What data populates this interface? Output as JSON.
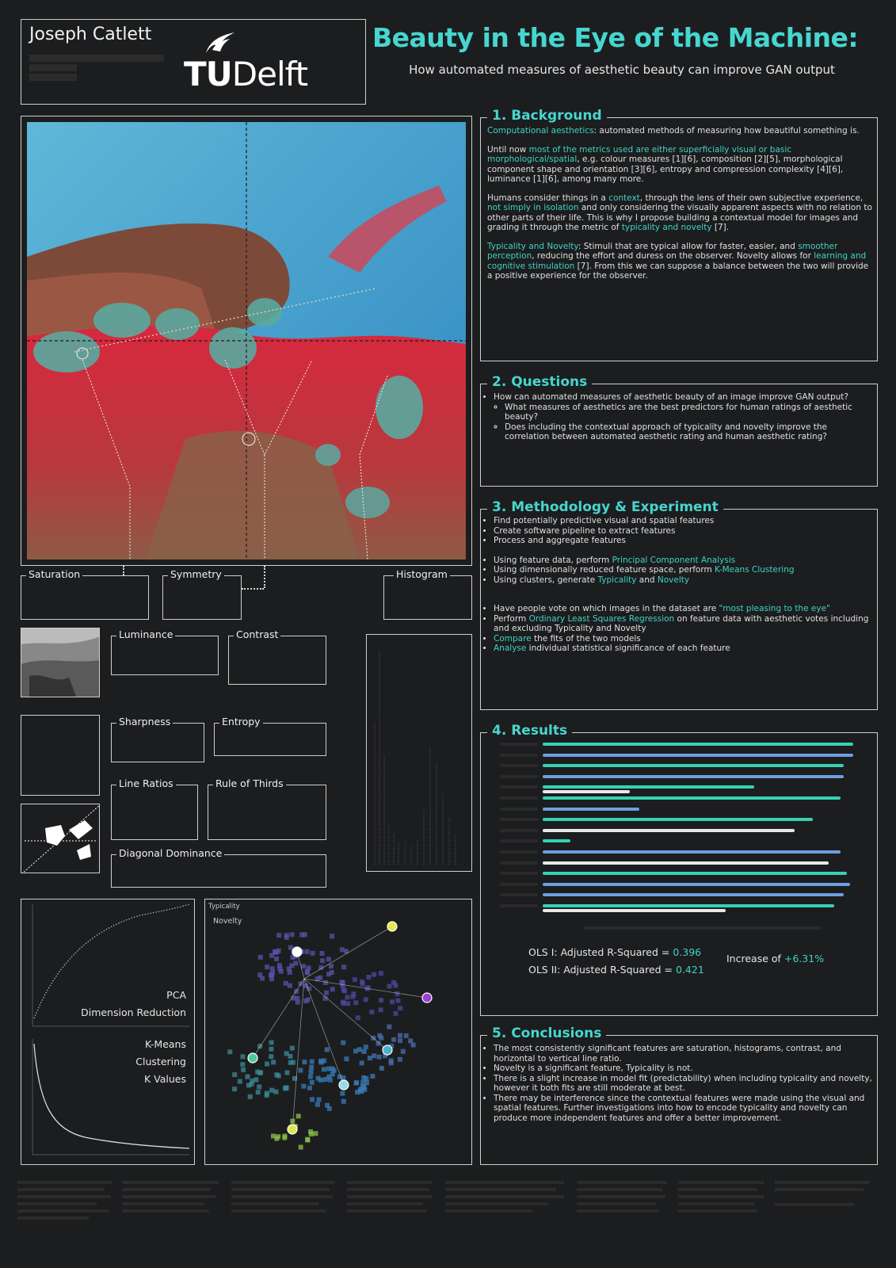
{
  "header": {
    "author": "Joseph Catlett",
    "logo_tu": "TU",
    "logo_delft": "Delft",
    "title": "Beauty in the Eye of the Machine:",
    "subtitle": "How automated measures of aesthetic beauty can improve GAN output"
  },
  "background": {
    "heading": "1. Background",
    "p1_accent": "Computational aesthetics",
    "p1_rest": ": automated methods of measuring how beautiful something is.",
    "p2_a": "Until now ",
    "p2_accent": "most of the metrics used are either superficially visual or basic morphological/spatial",
    "p2_b": ", e.g. colour measures [1][6], composition [2][5], morphological component shape and orientation [3][6], entropy and compression complexity [4][6], luminance [1][6], among many more.",
    "p3_a": "Humans consider things in a ",
    "p3_accent1": "context",
    "p3_b": ", through the lens of their own subjective experience, ",
    "p3_accent2": "not simply in isolation",
    "p3_c": " and only considering the visually apparent aspects with no relation to other parts of their life. This is why I propose building a contextual model for images and grading it through the metric of ",
    "p3_accent3": "typicality and novelty",
    "p3_d": " [7].",
    "p4_accent1": "Typicality and Novelty",
    "p4_a": ": Stimuli that are typical allow for faster, easier, and ",
    "p4_accent2": "smoother perception",
    "p4_b": ", reducing the effort and duress on the observer. Novelty allows for ",
    "p4_accent3": "learning and cognitive stimulation",
    "p4_c": " [7]. From this we can suppose a balance between the two will provide a positive experience for the observer."
  },
  "questions": {
    "heading": "2. Questions",
    "q1": "How can automated measures of aesthetic beauty of an image improve GAN output?",
    "q1a": "What measures of aesthetics are the best predictors for human ratings of aesthetic beauty?",
    "q1b": "Does including the contextual approach of typicality and novelty improve the correlation between automated aesthetic rating and human aesthetic rating?"
  },
  "methodology": {
    "heading": "3. Methodology & Experiment",
    "m1": "Find potentially predictive visual and spatial features",
    "m2": "Create software pipeline to extract features",
    "m3": "Process and aggregate features",
    "m4_a": "Using feature data, perform ",
    "m4_accent": "Principal Component Analysis",
    "m5_a": "Using dimensionally reduced feature space, perform ",
    "m5_accent": "K-Means Clustering",
    "m6_a": "Using clusters, generate ",
    "m6_accent1": "Typicality",
    "m6_b": " and ",
    "m6_accent2": "Novelty",
    "m7_a": "Have people vote on which images in the dataset are ",
    "m7_accent": "\"most pleasing to the eye\"",
    "m8_a": "Perform ",
    "m8_accent": "Ordinary Least Squares Regression",
    "m8_b": " on feature data with aesthetic votes including and excluding Typicality and Novelty",
    "m9_accent": "Compare",
    "m9_b": " the fits of the two models",
    "m10_accent": "Analyse",
    "m10_b": " individual statistical significance of each feature"
  },
  "results": {
    "heading": "4. Results",
    "ols1_label": "OLS I:  Adjusted R-Squared = ",
    "ols1_value": "0.396",
    "ols2_label": "OLS II:  Adjusted R-Squared = ",
    "ols2_value": "0.421",
    "increase_label": "Increase of ",
    "increase_value": "+6.31%"
  },
  "conclusions": {
    "heading": "5. Conclusions",
    "c1": "The most consistently significant features are saturation, histograms, contrast, and horizontal to vertical line ratio.",
    "c2": "Novelty is a significant feature, Typicality is not.",
    "c3": "There is a slight increase in model fit (predictability) when including typicality and novelty, however it both fits are still moderate at best.",
    "c4": "There may be interference since the contextual features were made using the visual and spatial features.  Further investigations into how to encode typicality and novelty can produce more independent features and offer a better improvement."
  },
  "features": {
    "saturation": "Saturation",
    "symmetry": "Symmetry",
    "histogram": "Histogram",
    "luminance": "Luminance",
    "contrast": "Contrast",
    "sharpness": "Sharpness",
    "entropy": "Entropy",
    "line_ratios": "Line Ratios",
    "rule_of_thirds": "Rule of Thirds",
    "diagonal_dominance": "Diagonal Dominance"
  },
  "figures": {
    "pca_line1": "PCA",
    "pca_line2": "Dimension Reduction",
    "kmeans_line1": "K-Means",
    "kmeans_line2": "Clustering",
    "kmeans_line3": "K Values",
    "scatter_typicality": "Typicality",
    "scatter_novelty": "Novelty"
  },
  "colors": {
    "accent": "#46d6cf",
    "bar_teal": "#34d3b3",
    "bar_blue": "#6c9fe0",
    "bar_white": "#e8e8e8",
    "background": "#1c1d1f"
  },
  "chart_data": {
    "type": "bar",
    "orientation": "horizontal",
    "series": [
      {
        "values": [
          1.0,
          0.0,
          0.97,
          0.0,
          0.68,
          0.96,
          0.0,
          0.87,
          0.0,
          0.09,
          0.0,
          0.0,
          0.98,
          0.0,
          0.0,
          0.94
        ]
      },
      {
        "values": [
          0.0,
          1.0,
          0.0,
          0.97,
          0.0,
          0.0,
          0.31,
          0.0,
          0.0,
          0.0,
          0.96,
          0.0,
          0.0,
          0.99,
          0.97,
          0.0
        ]
      },
      {
        "values": [
          0.0,
          0.0,
          0.0,
          0.0,
          0.28,
          0.0,
          0.0,
          0.0,
          0.81,
          0.0,
          0.0,
          0.92,
          0.0,
          0.0,
          0.0,
          0.59
        ]
      }
    ]
  }
}
